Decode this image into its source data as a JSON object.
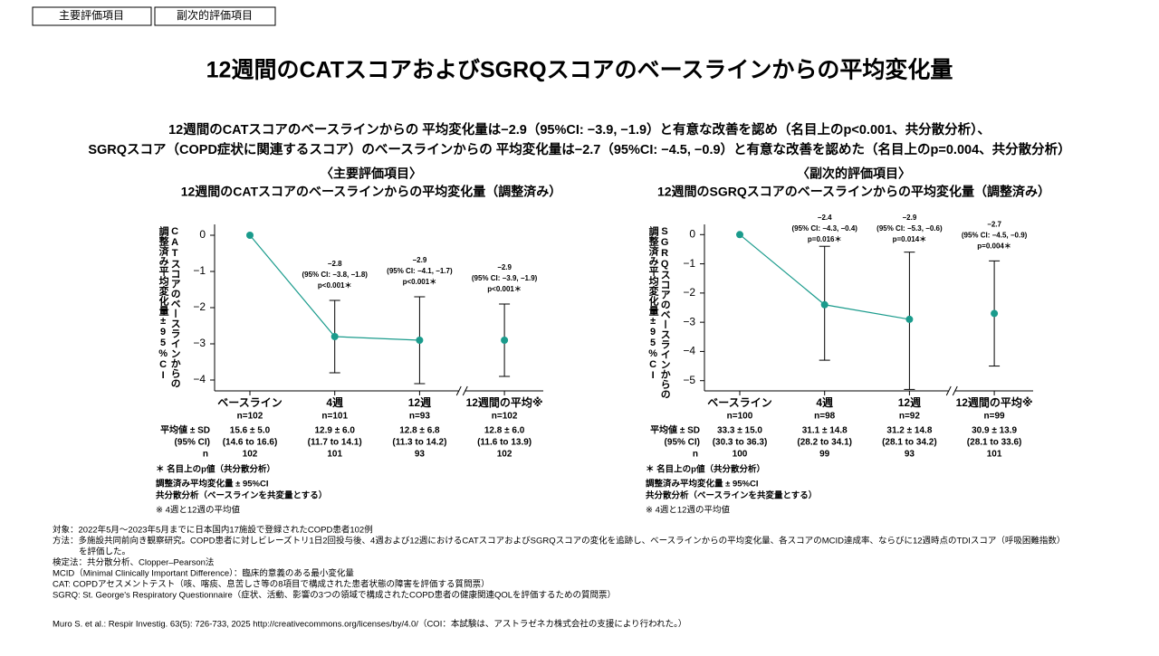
{
  "tabs": [
    "主要評価項目",
    "副次的評価項目"
  ],
  "title": "12週間のCATスコアおよびSGRQスコアのベースラインからの平均変化量",
  "summary": [
    "12週間のCATスコアのベースラインからの 平均変化量は−2.9（95%CI: −3.9, −1.9）と有意な改善を認め（名目上のp<0.001、共分散分析）、",
    "SGRQスコア（COPD症状に関連するスコア）のベースラインからの 平均変化量は−2.7（95%CI: −4.5, −0.9）と有意な改善を認めた（名目上のp=0.004、共分散分析）"
  ],
  "chart_data": [
    {
      "type": "line",
      "header": [
        "〈主要評価項目〉",
        "12週間のCATスコアのベースラインからの平均変化量（調整済み）"
      ],
      "ylabel": [
        "CATスコアのベースラインからの",
        "調整済み平均変化量±95%CI"
      ],
      "categories": [
        "ベースライン",
        "4週",
        "12週",
        "12週間の平均※"
      ],
      "n_labels": [
        "n=102",
        "n=101",
        "n=93",
        "n=102"
      ],
      "values": [
        0,
        -2.8,
        -2.9,
        -2.9
      ],
      "value_labels": [
        null,
        "−2.8",
        "−2.9",
        "−2.9"
      ],
      "ci_low": [
        null,
        -3.8,
        -4.1,
        -3.9
      ],
      "ci_high": [
        null,
        -1.8,
        -1.7,
        -1.9
      ],
      "ci_labels": [
        null,
        "(95% CI: −3.8, −1.8)",
        "(95% CI: −4.1, −1.7)",
        "(95% CI: −3.9, −1.9)"
      ],
      "p_labels": [
        null,
        "p<0.001＊",
        "p<0.001＊",
        "p<0.001＊"
      ],
      "color": "#1a9b8c",
      "axis_break": true,
      "ylim": [
        -4.3,
        0.3
      ],
      "yticks": [
        0,
        {
          "value": -1,
          "label": "−1"
        },
        {
          "value": -2,
          "label": "−2"
        },
        {
          "value": -3,
          "label": "−3"
        },
        {
          "value": -4,
          "label": "−4"
        }
      ],
      "table": {
        "row_labels": [
          "平均値 ± SD",
          "(95% CI)",
          "n"
        ],
        "rows": [
          [
            "15.6 ± 5.0",
            "12.9 ± 6.0",
            "12.8 ± 6.8",
            "12.8 ± 6.0"
          ],
          [
            "(14.6 to 16.6)",
            "(11.7 to 14.1)",
            "(11.3 to 14.2)",
            "(11.6 to 13.9)"
          ],
          [
            102,
            101,
            93,
            102
          ]
        ]
      },
      "footnotes": [
        "＊ 名目上のp値（共分散分析）",
        "調整済み平均変化量 ± 95%CI",
        "共分散分析（ベースラインを共変量とする）",
        "※ 4週と12週の平均値"
      ]
    },
    {
      "type": "line",
      "header": [
        "〈副次的評価項目〉",
        "12週間のSGRQスコアのベースラインからの平均変化量（調整済み）"
      ],
      "ylabel": [
        "SGRQスコアのベースラインからの",
        "調整済み平均変化量±95%CI"
      ],
      "categories": [
        "ベースライン",
        "4週",
        "12週",
        "12週間の平均※"
      ],
      "n_labels": [
        "n=100",
        "n=98",
        "n=92",
        "n=99"
      ],
      "values": [
        0,
        -2.4,
        -2.9,
        -2.7
      ],
      "value_labels": [
        null,
        "−2.4",
        "−2.9",
        "−2.7"
      ],
      "ci_low": [
        null,
        -4.3,
        -5.3,
        -4.5
      ],
      "ci_high": [
        null,
        -0.4,
        -0.6,
        -0.9
      ],
      "ci_labels": [
        null,
        "(95% CI: −4.3, −0.4)",
        "(95% CI: −5.3, −0.6)",
        "(95% CI: −4.5, −0.9)"
      ],
      "p_labels": [
        null,
        "p=0.016＊",
        "p=0.014＊",
        "p=0.004＊"
      ],
      "color": "#1a9b8c",
      "axis_break": true,
      "ylim": [
        -5.35,
        0.35
      ],
      "yticks": [
        0,
        {
          "value": -1,
          "label": "−1"
        },
        {
          "value": -2,
          "label": "−2"
        },
        {
          "value": -3,
          "label": "−3"
        },
        {
          "value": -4,
          "label": "−4"
        },
        {
          "value": -5,
          "label": "−5"
        }
      ],
      "table": {
        "row_labels": [
          "平均値 ± SD",
          "(95% CI)",
          "n"
        ],
        "rows": [
          [
            "33.3 ± 15.0",
            "31.1 ± 14.8",
            "31.2 ± 14.8",
            "30.9 ± 13.9"
          ],
          [
            "(30.3 to 36.3)",
            "(28.2 to 34.1)",
            "(28.1 to 34.2)",
            "(28.1 to 33.6)"
          ],
          [
            100,
            99,
            93,
            101
          ]
        ]
      },
      "footnotes": [
        "＊ 名目上のp値（共分散分析）",
        "調整済み平均変化量 ± 95%CI",
        "共分散分析（ベースラインを共変量とする）",
        "※ 4週と12週の平均値"
      ]
    }
  ],
  "notes": [
    "対象：2022年5月～2023年5月までに日本国内17施設で登録されたCOPD患者102例",
    "方法：多施設共同前向き観察研究。COPD患者に対しビレーズトリ1日2回投与後、4週および12週におけるCATスコアおよびSGRQスコアの変化を追跡し、ベースラインからの平均変化量、各スコアのMCID達成率、ならびに12週時点のTDIスコア（呼吸困難指数）",
    "を評価した。",
    "検定法：共分散分析、Clopper–Pearson法",
    "MCID（Minimal Clinically Important Difference）：臨床的意義のある最小変化量",
    "CAT: COPDアセスメントテスト（咳、喀痰、息苦しさ等の8項目で構成された患者状態の障害を評価する質問票）",
    "SGRQ: St. George's Respiratory Questionnaire（症状、活動、影響の3つの領域で構成されたCOPD患者の健康関連QOLを評価するための質問票）"
  ],
  "citation": "Muro S. et al.: Respir Investig. 63(5): 726-733, 2025  http://creativecommons.org/licenses/by/4.0/（COI：本試験は、アストラゼネカ株式会社の支援により行われた。）"
}
